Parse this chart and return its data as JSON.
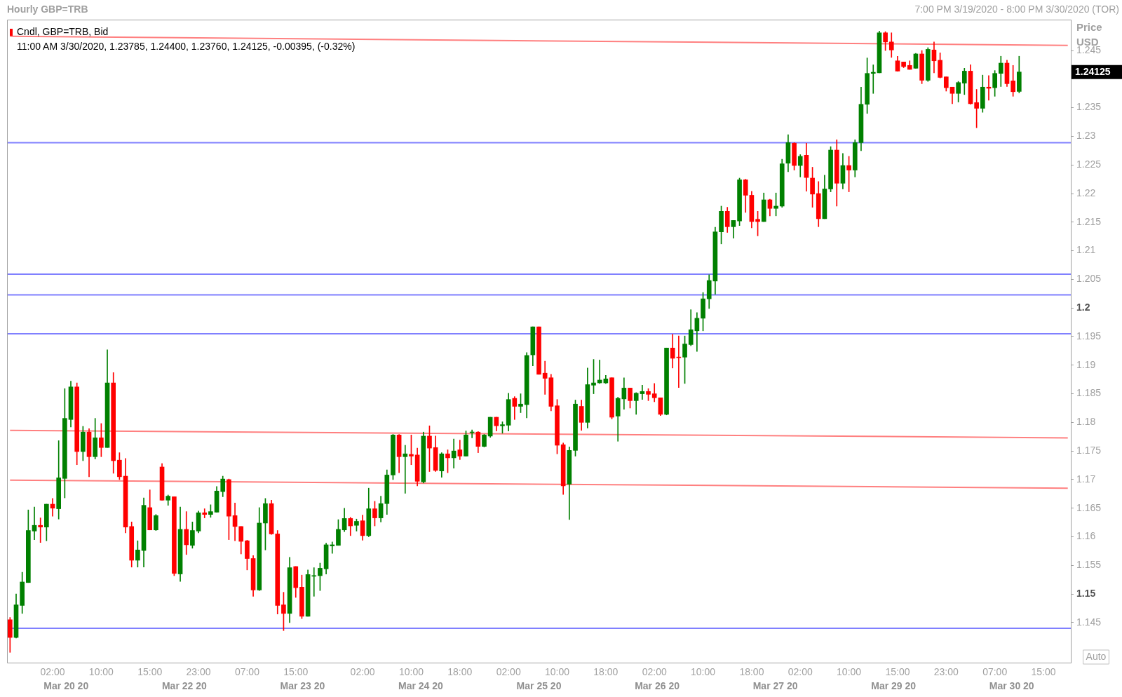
{
  "chart_data": {
    "type": "candlestick",
    "title": "Hourly GBP=TRB",
    "subtitle": "7:00 PM 3/19/2020 - 8:00 PM 3/30/2020 (TOR)",
    "ylabel": "Price USD",
    "legend": "top left",
    "categories": [
      null,
      null,
      null,
      null,
      null,
      null,
      null,
      "02:00",
      null,
      null,
      null,
      null,
      null,
      null,
      null,
      "10:00",
      null,
      null,
      null,
      null,
      null,
      null,
      null,
      "15:00",
      null,
      null,
      null,
      null,
      null,
      null,
      null,
      "23:00",
      null,
      null,
      null,
      null,
      null,
      null,
      null,
      "07:00",
      null,
      null,
      null,
      null,
      null,
      null,
      null,
      "15:00",
      null,
      null,
      null,
      null,
      null,
      null,
      null,
      null,
      null,
      null,
      "02:00",
      null,
      null,
      null,
      null,
      null,
      null,
      null,
      "10:00",
      null,
      null,
      null,
      null,
      null,
      null,
      null,
      "18:00",
      null,
      null,
      null,
      null,
      null,
      null,
      null,
      "02:00",
      null,
      null,
      null,
      null,
      null,
      null,
      null,
      "10:00",
      null,
      null,
      null,
      null,
      null,
      null,
      null,
      "18:00",
      null,
      null,
      null,
      null,
      null,
      null,
      null,
      "02:00",
      null,
      null,
      null,
      null,
      null,
      null,
      null,
      "10:00",
      null,
      null,
      null,
      null,
      null,
      null,
      null,
      "18:00",
      null,
      null,
      null,
      null,
      null,
      null,
      null,
      "02:00",
      null,
      null,
      null,
      null,
      null,
      null,
      null,
      "10:00",
      null,
      null,
      null,
      null,
      null,
      null,
      null,
      "15:00",
      null,
      null,
      null,
      null,
      null,
      null,
      null,
      "23:00",
      null,
      null,
      null,
      null,
      null,
      null,
      null,
      "07:00",
      null,
      null,
      null,
      null,
      null,
      null,
      null,
      "15:00",
      null,
      null,
      null,
      null
    ],
    "series": [
      {
        "name": "Cndl, GBP=TRB, Bid",
        "type": "candlestick",
        "ohlc": [
          [
            1.1455,
            1.1459,
            1.1398,
            1.1424
          ],
          [
            1.1424,
            1.15,
            1.1423,
            1.1481
          ],
          [
            1.148,
            1.1538,
            1.1466,
            1.1521
          ],
          [
            1.152,
            1.1647,
            1.152,
            1.1611
          ],
          [
            1.161,
            1.1652,
            1.1595,
            1.162
          ],
          [
            1.162,
            1.1633,
            1.159,
            1.1617
          ],
          [
            1.1617,
            1.1657,
            1.1593,
            1.1657
          ],
          [
            1.1657,
            1.1667,
            1.1636,
            1.165
          ],
          [
            1.1649,
            1.1768,
            1.1631,
            1.1703
          ],
          [
            1.1702,
            1.1859,
            1.1668,
            1.1807
          ],
          [
            1.1805,
            1.1872,
            1.1792,
            1.1862
          ],
          [
            1.1862,
            1.1869,
            1.1726,
            1.1749
          ],
          [
            1.1749,
            1.1793,
            1.1733,
            1.1783
          ],
          [
            1.1783,
            1.1789,
            1.1705,
            1.174
          ],
          [
            1.174,
            1.1807,
            1.1736,
            1.1773
          ],
          [
            1.1773,
            1.1798,
            1.174,
            1.1756
          ],
          [
            1.1756,
            1.1927,
            1.1756,
            1.1869
          ],
          [
            1.1869,
            1.1887,
            1.1711,
            1.1733
          ],
          [
            1.1734,
            1.1747,
            1.17,
            1.1705
          ],
          [
            1.1706,
            1.1737,
            1.1607,
            1.1617
          ],
          [
            1.1618,
            1.1626,
            1.1547,
            1.1559
          ],
          [
            1.1559,
            1.1593,
            1.1547,
            1.1577
          ],
          [
            1.1576,
            1.1668,
            1.1547,
            1.1655
          ],
          [
            1.1651,
            1.1682,
            1.1612,
            1.1612
          ],
          [
            1.1612,
            1.1639,
            1.1611,
            1.1637
          ],
          [
            1.1722,
            1.1728,
            1.1664,
            1.1664
          ],
          [
            1.1664,
            1.1673,
            1.1655,
            1.1671
          ],
          [
            1.167,
            1.167,
            1.1532,
            1.1536
          ],
          [
            1.1535,
            1.1652,
            1.1522,
            1.1613
          ],
          [
            1.1613,
            1.1644,
            1.1569,
            1.1586
          ],
          [
            1.1585,
            1.1626,
            1.158,
            1.1611
          ],
          [
            1.161,
            1.1645,
            1.1607,
            1.1642
          ],
          [
            1.1642,
            1.1649,
            1.1633,
            1.1639
          ],
          [
            1.1639,
            1.1656,
            1.1634,
            1.1644
          ],
          [
            1.1643,
            1.1688,
            1.1643,
            1.168
          ],
          [
            1.1679,
            1.1706,
            1.167,
            1.1701
          ],
          [
            1.17,
            1.1701,
            1.1595,
            1.1636
          ],
          [
            1.1637,
            1.1659,
            1.1593,
            1.1618
          ],
          [
            1.1618,
            1.1618,
            1.157,
            1.1592
          ],
          [
            1.1593,
            1.1594,
            1.1542,
            1.1562
          ],
          [
            1.1562,
            1.1567,
            1.1496,
            1.1507
          ],
          [
            1.1507,
            1.1651,
            1.1506,
            1.1624
          ],
          [
            1.1624,
            1.1667,
            1.1577,
            1.1658
          ],
          [
            1.1658,
            1.1664,
            1.1604,
            1.1605
          ],
          [
            1.1605,
            1.1611,
            1.1465,
            1.148
          ],
          [
            1.1481,
            1.1503,
            1.1436,
            1.1466
          ],
          [
            1.1466,
            1.1564,
            1.145,
            1.1546
          ],
          [
            1.1548,
            1.1548,
            1.1494,
            1.1511
          ],
          [
            1.1512,
            1.1533,
            1.1457,
            1.1461
          ],
          [
            1.1461,
            1.1542,
            1.1461,
            1.1534
          ],
          [
            1.1531,
            1.1546,
            1.1496,
            1.1532
          ],
          [
            1.1532,
            1.1554,
            1.1506,
            1.1545
          ],
          [
            1.1544,
            1.1589,
            1.1535,
            1.1586
          ],
          [
            1.1584,
            1.1591,
            1.1571,
            1.1586
          ],
          [
            1.1585,
            1.163,
            1.1585,
            1.1613
          ],
          [
            1.1612,
            1.165,
            1.1609,
            1.1632
          ],
          [
            1.1632,
            1.1634,
            1.1602,
            1.1619
          ],
          [
            1.162,
            1.1631,
            1.161,
            1.1627
          ],
          [
            1.1628,
            1.1638,
            1.1594,
            1.1602
          ],
          [
            1.1602,
            1.1685,
            1.16,
            1.1649
          ],
          [
            1.1649,
            1.1662,
            1.1619,
            1.1633
          ],
          [
            1.1633,
            1.1671,
            1.1626,
            1.1658
          ],
          [
            1.1658,
            1.1717,
            1.1639,
            1.1708
          ],
          [
            1.1708,
            1.1779,
            1.17,
            1.1778
          ],
          [
            1.1778,
            1.1779,
            1.1712,
            1.174
          ],
          [
            1.174,
            1.176,
            1.1676,
            1.1745
          ],
          [
            1.1744,
            1.1778,
            1.1726,
            1.1741
          ],
          [
            1.1743,
            1.1755,
            1.1689,
            1.1697
          ],
          [
            1.1696,
            1.1783,
            1.1694,
            1.1776
          ],
          [
            1.1776,
            1.1794,
            1.1714,
            1.1755
          ],
          [
            1.1756,
            1.1776,
            1.1714,
            1.1716
          ],
          [
            1.1715,
            1.1747,
            1.1704,
            1.1745
          ],
          [
            1.1745,
            1.1752,
            1.1712,
            1.1738
          ],
          [
            1.1738,
            1.1771,
            1.172,
            1.175
          ],
          [
            1.1752,
            1.1769,
            1.1735,
            1.1741
          ],
          [
            1.1741,
            1.1785,
            1.1741,
            1.1778
          ],
          [
            1.1782,
            1.1787,
            1.1773,
            1.1783
          ],
          [
            1.1783,
            1.1784,
            1.1747,
            1.1758
          ],
          [
            1.1758,
            1.1779,
            1.1757,
            1.1778
          ],
          [
            1.1776,
            1.1809,
            1.1774,
            1.1809
          ],
          [
            1.1809,
            1.1809,
            1.1785,
            1.1794
          ],
          [
            1.1794,
            1.1801,
            1.1781,
            1.1796
          ],
          [
            1.1795,
            1.1851,
            1.1785,
            1.184
          ],
          [
            1.1842,
            1.1845,
            1.1805,
            1.1828
          ],
          [
            1.1828,
            1.185,
            1.1817,
            1.1832
          ],
          [
            1.1831,
            1.1922,
            1.1808,
            1.1917
          ],
          [
            1.1918,
            1.1967,
            1.1899,
            1.1967
          ],
          [
            1.1967,
            1.1967,
            1.1884,
            1.1884
          ],
          [
            1.1886,
            1.1907,
            1.1849,
            1.1877
          ],
          [
            1.1878,
            1.1884,
            1.182,
            1.1828
          ],
          [
            1.1829,
            1.184,
            1.1745,
            1.176
          ],
          [
            1.1761,
            1.1764,
            1.1674,
            1.1689
          ],
          [
            1.1692,
            1.1757,
            1.163,
            1.1751
          ],
          [
            1.1751,
            1.1839,
            1.1741,
            1.1832
          ],
          [
            1.1828,
            1.1839,
            1.1786,
            1.18
          ],
          [
            1.18,
            1.1895,
            1.179,
            1.1866
          ],
          [
            1.1865,
            1.191,
            1.185,
            1.1869
          ],
          [
            1.1869,
            1.1909,
            1.1868,
            1.1874
          ],
          [
            1.1869,
            1.1882,
            1.1868,
            1.1876
          ],
          [
            1.1878,
            1.1878,
            1.1806,
            1.1809
          ],
          [
            1.1811,
            1.1844,
            1.1767,
            1.1842
          ],
          [
            1.1841,
            1.1878,
            1.1823,
            1.186
          ],
          [
            1.186,
            1.186,
            1.1825,
            1.1838
          ],
          [
            1.1838,
            1.1852,
            1.1814,
            1.1851
          ],
          [
            1.185,
            1.1865,
            1.184,
            1.1854
          ],
          [
            1.1854,
            1.1859,
            1.1838,
            1.1849
          ],
          [
            1.185,
            1.1868,
            1.1836,
            1.1843
          ],
          [
            1.1843,
            1.1843,
            1.1812,
            1.1814
          ],
          [
            1.1814,
            1.193,
            1.1813,
            1.193
          ],
          [
            1.193,
            1.1954,
            1.1895,
            1.1912
          ],
          [
            1.1914,
            1.1951,
            1.1861,
            1.1913
          ],
          [
            1.1914,
            1.1951,
            1.1868,
            1.1937
          ],
          [
            1.1936,
            1.1997,
            1.1934,
            1.1962
          ],
          [
            1.196,
            1.1992,
            1.1924,
            1.1982
          ],
          [
            1.1982,
            1.2027,
            1.196,
            1.2016
          ],
          [
            1.2016,
            1.2058,
            1.1999,
            1.2048
          ],
          [
            1.2047,
            1.2141,
            1.2024,
            1.2133
          ],
          [
            1.2133,
            1.2178,
            1.2112,
            1.2169
          ],
          [
            1.2169,
            1.2176,
            1.2132,
            1.2142
          ],
          [
            1.2142,
            1.2153,
            1.2122,
            1.2153
          ],
          [
            1.2152,
            1.2227,
            1.2144,
            1.2224
          ],
          [
            1.2224,
            1.2225,
            1.2167,
            1.2197
          ],
          [
            1.2197,
            1.2204,
            1.214,
            1.2151
          ],
          [
            1.2155,
            1.2169,
            1.2126,
            1.2151
          ],
          [
            1.2151,
            1.2201,
            1.2151,
            1.2189
          ],
          [
            1.2189,
            1.219,
            1.2161,
            1.2174
          ],
          [
            1.2174,
            1.2201,
            1.2161,
            1.2178
          ],
          [
            1.2178,
            1.226,
            1.2176,
            1.2252
          ],
          [
            1.2253,
            1.2303,
            1.2238,
            1.2289
          ],
          [
            1.2288,
            1.2289,
            1.2241,
            1.2249
          ],
          [
            1.2249,
            1.2268,
            1.2229,
            1.2265
          ],
          [
            1.2267,
            1.2288,
            1.2204,
            1.2228
          ],
          [
            1.2227,
            1.2246,
            1.2176,
            1.2199
          ],
          [
            1.22,
            1.2221,
            1.2142,
            1.2156
          ],
          [
            1.2156,
            1.2232,
            1.2156,
            1.2208
          ],
          [
            1.2208,
            1.2282,
            1.2203,
            1.2276
          ],
          [
            1.2276,
            1.2294,
            1.2178,
            1.2218
          ],
          [
            1.2218,
            1.227,
            1.2208,
            1.2249
          ],
          [
            1.2249,
            1.2265,
            1.2203,
            1.2241
          ],
          [
            1.2241,
            1.2294,
            1.2229,
            1.2289
          ],
          [
            1.2289,
            1.2386,
            1.2275,
            1.2356
          ],
          [
            1.2356,
            1.2437,
            1.234,
            1.241
          ],
          [
            1.241,
            1.2425,
            1.2375,
            1.2412
          ],
          [
            1.2411,
            1.2484,
            1.2411,
            1.2481
          ],
          [
            1.2481,
            1.2483,
            1.245,
            1.2465
          ],
          [
            1.2465,
            1.2481,
            1.2438,
            1.2451
          ],
          [
            1.2432,
            1.244,
            1.2414,
            1.2414
          ],
          [
            1.243,
            1.243,
            1.242,
            1.2422
          ],
          [
            1.2424,
            1.2432,
            1.2417,
            1.2417
          ],
          [
            1.2419,
            1.2445,
            1.2419,
            1.2444
          ],
          [
            1.2444,
            1.245,
            1.2392,
            1.2398
          ],
          [
            1.2398,
            1.2455,
            1.2396,
            1.2452
          ],
          [
            1.2451,
            1.2465,
            1.2411,
            1.2432
          ],
          [
            1.2433,
            1.2446,
            1.2402,
            1.2403
          ],
          [
            1.2404,
            1.2404,
            1.2379,
            1.2385
          ],
          [
            1.2386,
            1.2386,
            1.2357,
            1.2375
          ],
          [
            1.2375,
            1.2396,
            1.236,
            1.2394
          ],
          [
            1.2393,
            1.2419,
            1.2373,
            1.2414
          ],
          [
            1.2414,
            1.2425,
            1.2356,
            1.2357
          ],
          [
            1.2359,
            1.2382,
            1.2315,
            1.2349
          ],
          [
            1.2349,
            1.2407,
            1.2342,
            1.2386
          ],
          [
            1.2386,
            1.2406,
            1.2363,
            1.2384
          ],
          [
            1.2385,
            1.2415,
            1.237,
            1.241
          ],
          [
            1.241,
            1.244,
            1.2387,
            1.2428
          ],
          [
            1.2428,
            1.2433,
            1.2387,
            1.2392
          ],
          [
            1.2397,
            1.2424,
            1.237,
            1.2378
          ],
          [
            1.23785,
            1.244,
            1.2376,
            1.24125
          ],
          null,
          null,
          null,
          null,
          null,
          null,
          null,
          null
        ],
        "colors": [
          "#ff0000",
          "#008000",
          "#008000",
          "#008000",
          "#008000",
          "#ff0000",
          "#008000",
          "#ff0000",
          "#008000",
          "#008000",
          "#008000",
          "#ff0000",
          "#008000",
          "#ff0000",
          "#008000",
          "#ff0000",
          "#008000",
          "#ff0000",
          "#ff0000",
          "#ff0000",
          "#ff0000",
          "#008000",
          "#008000",
          "#ff0000",
          "#008000",
          "#ff0000",
          "#008000",
          "#ff0000",
          "#008000",
          "#ff0000",
          "#008000",
          "#008000",
          "#ff0000",
          "#008000",
          "#008000",
          "#008000",
          "#ff0000",
          "#ff0000",
          "#ff0000",
          "#ff0000",
          "#ff0000",
          "#008000",
          "#008000",
          "#ff0000",
          "#ff0000",
          "#ff0000",
          "#008000",
          "#ff0000",
          "#ff0000",
          "#008000",
          "#008000",
          "#008000",
          "#008000",
          "#008000",
          "#008000",
          "#008000",
          "#ff0000",
          "#008000",
          "#ff0000",
          "#008000",
          "#ff0000",
          "#008000",
          "#008000",
          "#008000",
          "#ff0000",
          "#008000",
          "#ff0000",
          "#ff0000",
          "#008000",
          "#ff0000",
          "#ff0000",
          "#008000",
          "#ff0000",
          "#008000",
          "#ff0000",
          "#008000",
          "#008000",
          "#ff0000",
          "#008000",
          "#008000",
          "#ff0000",
          "#008000",
          "#008000",
          "#ff0000",
          "#008000",
          "#008000",
          "#008000",
          "#ff0000",
          "#ff0000",
          "#ff0000",
          "#ff0000",
          "#ff0000",
          "#008000",
          "#008000",
          "#ff0000",
          "#008000",
          "#008000",
          "#008000",
          "#008000",
          "#ff0000",
          "#008000",
          "#008000",
          "#ff0000",
          "#008000",
          "#008000",
          "#ff0000",
          "#ff0000",
          "#ff0000",
          "#008000",
          "#ff0000",
          "#ff0000",
          "#008000",
          "#008000",
          "#008000",
          "#008000",
          "#008000",
          "#008000",
          "#008000",
          "#ff0000",
          "#008000",
          "#008000",
          "#ff0000",
          "#ff0000",
          "#ff0000",
          "#008000",
          "#ff0000",
          "#008000",
          "#008000",
          "#008000",
          "#ff0000",
          "#008000",
          "#ff0000",
          "#ff0000",
          "#ff0000",
          "#008000",
          "#008000",
          "#ff0000",
          "#008000",
          "#ff0000",
          "#008000",
          "#008000",
          "#008000",
          "#008000",
          "#008000",
          "#ff0000",
          "#ff0000",
          "#ff0000",
          "#ff0000",
          "#ff0000",
          "#008000",
          "#ff0000",
          "#008000",
          "#ff0000",
          "#ff0000",
          "#ff0000",
          "#ff0000",
          "#008000",
          "#008000",
          "#ff0000",
          "#ff0000",
          "#008000",
          "#ff0000",
          "#008000",
          "#008000",
          "#ff0000",
          "#ff0000",
          "#008000",
          null,
          null,
          null,
          null,
          null,
          null,
          null,
          null
        ]
      },
      {
        "type": "line",
        "color": "#ff8080",
        "values": [
          1.2475,
          null,
          null,
          null,
          null,
          null,
          null,
          null,
          null,
          null,
          null,
          null,
          null,
          null,
          null,
          null,
          null,
          null,
          null,
          null,
          null,
          null,
          null,
          null,
          null,
          null,
          null,
          null,
          null,
          null,
          null,
          null,
          null,
          null,
          null,
          null,
          null,
          null,
          null,
          null,
          null,
          null,
          null,
          null,
          null,
          null,
          null,
          null,
          null,
          null,
          null,
          null,
          null,
          null,
          null,
          null,
          null,
          null,
          null,
          null,
          null,
          null,
          null,
          null,
          null,
          null,
          null,
          null,
          null,
          null,
          null,
          null,
          null,
          null,
          null,
          null,
          null,
          null,
          null,
          null,
          null,
          null,
          null,
          null,
          null,
          null,
          null,
          null,
          null,
          null,
          null,
          null,
          null,
          null,
          null,
          null,
          null,
          null,
          null,
          null,
          null,
          null,
          null,
          null,
          null,
          null,
          null,
          null,
          null,
          null,
          null,
          null,
          null,
          null,
          null,
          null,
          null,
          null,
          null,
          null,
          null,
          null,
          null,
          null,
          null,
          null,
          null,
          null,
          null,
          null,
          null,
          null,
          null,
          null,
          null,
          null,
          null,
          null,
          null,
          null,
          null,
          null,
          null,
          null,
          null,
          null,
          null,
          null,
          null,
          null,
          null,
          null,
          null,
          null,
          null,
          null,
          null,
          null,
          null,
          null,
          null,
          null,
          null,
          null,
          null,
          null,
          null,
          null,
          null,
          null,
          null,
          null,
          null,
          null,
          1.2459
        ]
      },
      {
        "type": "line",
        "color": "#ff8080",
        "values": [
          1.1786,
          null,
          null,
          null,
          null,
          null,
          null,
          null,
          null,
          null,
          null,
          null,
          null,
          null,
          null,
          null,
          null,
          null,
          null,
          null,
          null,
          null,
          null,
          null,
          null,
          null,
          null,
          null,
          null,
          null,
          null,
          null,
          null,
          null,
          null,
          null,
          null,
          null,
          null,
          null,
          null,
          null,
          null,
          null,
          null,
          null,
          null,
          null,
          null,
          null,
          null,
          null,
          null,
          null,
          null,
          null,
          null,
          null,
          null,
          null,
          null,
          null,
          null,
          null,
          null,
          null,
          null,
          null,
          null,
          null,
          null,
          null,
          null,
          null,
          null,
          null,
          null,
          null,
          null,
          null,
          null,
          null,
          null,
          null,
          null,
          null,
          null,
          null,
          null,
          null,
          null,
          null,
          null,
          null,
          null,
          null,
          null,
          null,
          null,
          null,
          null,
          null,
          null,
          null,
          null,
          null,
          null,
          null,
          null,
          null,
          null,
          null,
          null,
          null,
          null,
          null,
          null,
          null,
          null,
          null,
          null,
          null,
          null,
          null,
          null,
          null,
          null,
          null,
          null,
          null,
          null,
          null,
          null,
          null,
          null,
          null,
          null,
          null,
          null,
          null,
          null,
          null,
          null,
          null,
          null,
          null,
          null,
          null,
          null,
          null,
          null,
          null,
          null,
          null,
          null,
          null,
          null,
          null,
          null,
          null,
          null,
          null,
          null,
          null,
          null,
          null,
          null,
          null,
          null,
          null,
          null,
          null,
          null,
          null,
          1.1773
        ]
      },
      {
        "type": "line",
        "color": "#ff8080",
        "values": [
          1.1699,
          null,
          null,
          null,
          null,
          null,
          null,
          null,
          null,
          null,
          null,
          null,
          null,
          null,
          null,
          null,
          null,
          null,
          null,
          null,
          null,
          null,
          null,
          null,
          null,
          null,
          null,
          null,
          null,
          null,
          null,
          null,
          null,
          null,
          null,
          null,
          null,
          null,
          null,
          null,
          null,
          null,
          null,
          null,
          null,
          null,
          null,
          null,
          null,
          null,
          null,
          null,
          null,
          null,
          null,
          null,
          null,
          null,
          null,
          null,
          null,
          null,
          null,
          null,
          null,
          null,
          null,
          null,
          null,
          null,
          null,
          null,
          null,
          null,
          null,
          null,
          null,
          null,
          null,
          null,
          null,
          null,
          null,
          null,
          null,
          null,
          null,
          null,
          null,
          null,
          null,
          null,
          null,
          null,
          null,
          null,
          null,
          null,
          null,
          null,
          null,
          null,
          null,
          null,
          null,
          null,
          null,
          null,
          null,
          null,
          null,
          null,
          null,
          null,
          null,
          null,
          null,
          null,
          null,
          null,
          null,
          null,
          null,
          null,
          null,
          null,
          null,
          null,
          null,
          null,
          null,
          null,
          null,
          null,
          null,
          null,
          null,
          null,
          null,
          null,
          null,
          null,
          null,
          null,
          null,
          null,
          null,
          null,
          null,
          null,
          null,
          null,
          null,
          null,
          null,
          null,
          null,
          null,
          null,
          null,
          null,
          null,
          null,
          null,
          null,
          null,
          null,
          null,
          null,
          null,
          null,
          null,
          null,
          null,
          1.1685
        ]
      }
    ],
    "ylim": [
      1.138,
      1.2504
    ],
    "yticks": [
      1.145,
      1.15,
      1.155,
      1.16,
      1.165,
      1.17,
      1.175,
      1.18,
      1.185,
      1.19,
      1.195,
      1.2,
      1.205,
      1.21,
      1.215,
      1.22,
      1.225,
      1.23,
      1.235,
      {
        "value": 1.24,
        "label": null
      },
      1.245
    ],
    "ref_lines": [
      {
        "axis": "y",
        "value": 1.2289,
        "color": "#8080ff"
      },
      {
        "axis": "y",
        "value": 1.2059,
        "color": "#8080ff"
      },
      {
        "axis": "y",
        "value": 1.2023,
        "color": "#8080ff"
      },
      {
        "axis": "y",
        "value": 1.1955,
        "color": "#8080ff"
      },
      {
        "axis": "y",
        "value": 1.144,
        "color": "#8080ff"
      }
    ],
    "annotations": [
      "11:00 AM 3/30/2020, 1.23785, 1.24400, 1.23760, 1.24125, -0.00395, (-0.32%)",
      "1.24125",
      "Mar 20 20",
      "Mar 22 20",
      "Mar 23 20",
      "Mar 24 20",
      "Mar 25 20",
      "Mar 26 20",
      "Mar 27 20",
      "Mar 29 20",
      "Mar 30 20",
      "Auto"
    ]
  }
}
